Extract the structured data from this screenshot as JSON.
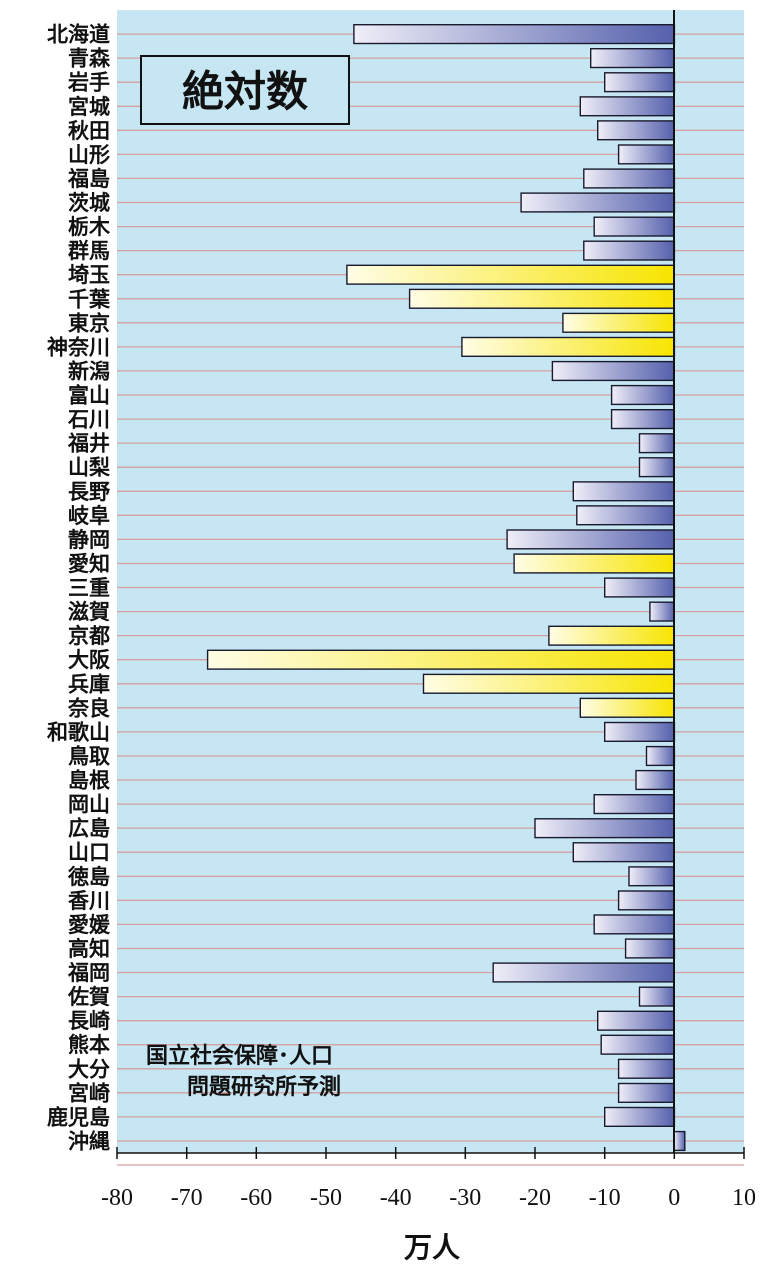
{
  "chart_data": {
    "type": "bar",
    "orientation": "horizontal",
    "title": "絶対数",
    "source_note": [
      "国立社会保障･人口",
      "問題研究所予測"
    ],
    "xlabel": "万人",
    "xlim": [
      -80,
      10
    ],
    "xticks": [
      -80,
      -70,
      -60,
      -50,
      -40,
      -30,
      -20,
      -10,
      0,
      10
    ],
    "grid": "horizontal",
    "colors": {
      "plot_bg": "#c6e6f3",
      "gridline": "#d4a0a0",
      "bar_blue_dark": "#5a66b0",
      "bar_blue_light": "#ecebf7",
      "bar_yellow": "#fae800",
      "bar_yellow_light": "#fffde0",
      "outline": "#1a1a2e"
    },
    "categories": [
      {
        "label": "北海道",
        "value": -46,
        "color": "blue"
      },
      {
        "label": "青森",
        "value": -12,
        "color": "blue"
      },
      {
        "label": "岩手",
        "value": -10,
        "color": "blue"
      },
      {
        "label": "宮城",
        "value": -13.5,
        "color": "blue"
      },
      {
        "label": "秋田",
        "value": -11,
        "color": "blue"
      },
      {
        "label": "山形",
        "value": -8,
        "color": "blue"
      },
      {
        "label": "福島",
        "value": -13,
        "color": "blue"
      },
      {
        "label": "茨城",
        "value": -22,
        "color": "blue"
      },
      {
        "label": "栃木",
        "value": -11.5,
        "color": "blue"
      },
      {
        "label": "群馬",
        "value": -13,
        "color": "blue"
      },
      {
        "label": "埼玉",
        "value": -47,
        "color": "yellow"
      },
      {
        "label": "千葉",
        "value": -38,
        "color": "yellow"
      },
      {
        "label": "東京",
        "value": -16,
        "color": "yellow"
      },
      {
        "label": "神奈川",
        "value": -30.5,
        "color": "yellow"
      },
      {
        "label": "新潟",
        "value": -17.5,
        "color": "blue"
      },
      {
        "label": "富山",
        "value": -9,
        "color": "blue"
      },
      {
        "label": "石川",
        "value": -9,
        "color": "blue"
      },
      {
        "label": "福井",
        "value": -5,
        "color": "blue"
      },
      {
        "label": "山梨",
        "value": -5,
        "color": "blue"
      },
      {
        "label": "長野",
        "value": -14.5,
        "color": "blue"
      },
      {
        "label": "岐阜",
        "value": -14,
        "color": "blue"
      },
      {
        "label": "静岡",
        "value": -24,
        "color": "blue"
      },
      {
        "label": "愛知",
        "value": -23,
        "color": "yellow"
      },
      {
        "label": "三重",
        "value": -10,
        "color": "blue"
      },
      {
        "label": "滋賀",
        "value": -3.5,
        "color": "blue"
      },
      {
        "label": "京都",
        "value": -18,
        "color": "yellow"
      },
      {
        "label": "大阪",
        "value": -67,
        "color": "yellow"
      },
      {
        "label": "兵庫",
        "value": -36,
        "color": "yellow"
      },
      {
        "label": "奈良",
        "value": -13.5,
        "color": "yellow"
      },
      {
        "label": "和歌山",
        "value": -10,
        "color": "blue"
      },
      {
        "label": "鳥取",
        "value": -4,
        "color": "blue"
      },
      {
        "label": "島根",
        "value": -5.5,
        "color": "blue"
      },
      {
        "label": "岡山",
        "value": -11.5,
        "color": "blue"
      },
      {
        "label": "広島",
        "value": -20,
        "color": "blue"
      },
      {
        "label": "山口",
        "value": -14.5,
        "color": "blue"
      },
      {
        "label": "徳島",
        "value": -6.5,
        "color": "blue"
      },
      {
        "label": "香川",
        "value": -8,
        "color": "blue"
      },
      {
        "label": "愛媛",
        "value": -11.5,
        "color": "blue"
      },
      {
        "label": "高知",
        "value": -7,
        "color": "blue"
      },
      {
        "label": "福岡",
        "value": -26,
        "color": "blue"
      },
      {
        "label": "佐賀",
        "value": -5,
        "color": "blue"
      },
      {
        "label": "長崎",
        "value": -11,
        "color": "blue"
      },
      {
        "label": "熊本",
        "value": -10.5,
        "color": "blue"
      },
      {
        "label": "大分",
        "value": -8,
        "color": "blue"
      },
      {
        "label": "宮崎",
        "value": -8,
        "color": "blue"
      },
      {
        "label": "鹿児島",
        "value": -10,
        "color": "blue"
      },
      {
        "label": "沖縄",
        "value": 1.5,
        "color": "blue"
      }
    ]
  }
}
